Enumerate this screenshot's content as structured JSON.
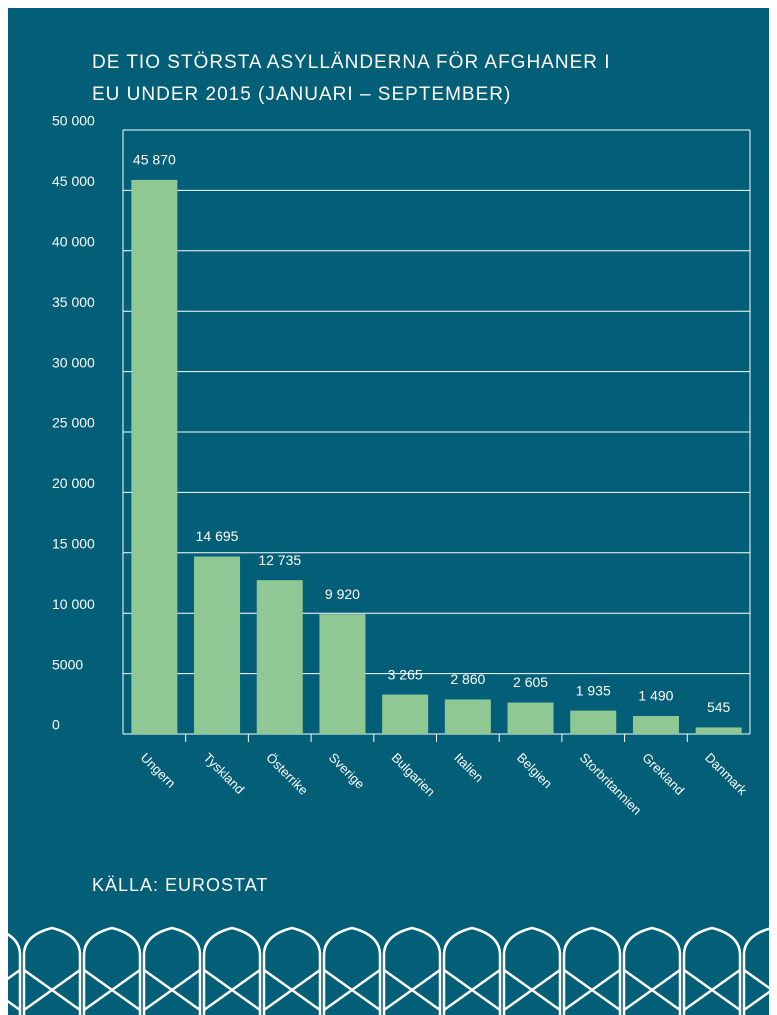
{
  "chart_data": {
    "type": "bar",
    "title": [
      "DE TIO STÖRSTA ASYLLÄNDERNA FÖR AFGHANER I",
      "EU UNDER 2015 (JANUARI – SEPTEMBER)"
    ],
    "source": "KÄLLA: EUROSTAT",
    "categories": [
      "Ungern",
      "Tyskland",
      "Österrike",
      "Sverige",
      "Bulgarien",
      "Italien",
      "Belgien",
      "Storbritannien",
      "Grekland",
      "Danmark"
    ],
    "values": [
      45870,
      14695,
      12735,
      9920,
      3265,
      2860,
      2605,
      1935,
      1490,
      545
    ],
    "value_labels": [
      "45 870",
      "14 695",
      "12 735",
      "9 920",
      "3 265",
      "2 860",
      "2 605",
      "1 935",
      "1 490",
      "545"
    ],
    "color": "#8fc894",
    "ylim": [
      0,
      50000
    ],
    "yticks": [
      0,
      5000,
      {
        "value": 10000,
        "label": "10 000"
      },
      {
        "value": 15000,
        "label": "15 000"
      },
      {
        "value": 20000,
        "label": "20 000"
      },
      {
        "value": 25000,
        "label": "25 000"
      },
      {
        "value": 30000,
        "label": "30 000"
      },
      {
        "value": 35000,
        "label": "35 000"
      },
      {
        "value": 40000,
        "label": "40 000"
      },
      {
        "value": 45000,
        "label": "45 000"
      },
      {
        "value": 50000,
        "label": "50 000"
      }
    ],
    "grid": true
  }
}
